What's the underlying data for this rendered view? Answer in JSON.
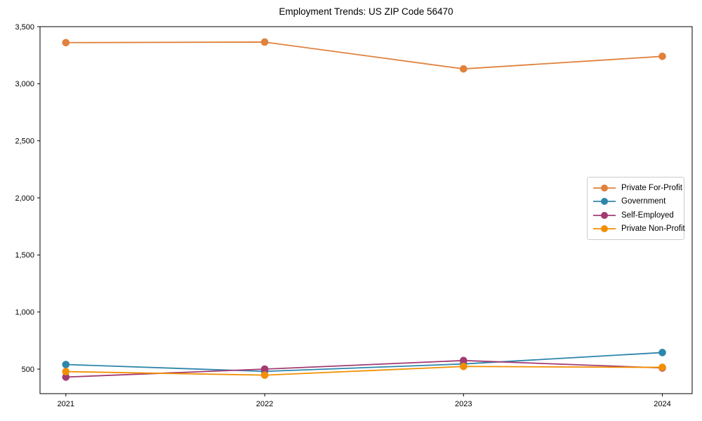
{
  "page": {
    "background": "#ffffff",
    "text_color": "#000000"
  },
  "chart_data": {
    "type": "line",
    "title": "Employment Trends: US ZIP Code 56470",
    "xlabel": "",
    "ylabel": "",
    "x": [
      2021,
      2022,
      2023,
      2024
    ],
    "x_tick_labels": [
      "2021",
      "2022",
      "2023",
      "2024"
    ],
    "y_ticks": [
      500,
      1000,
      1500,
      2000,
      2500,
      3000,
      3500
    ],
    "y_tick_labels": [
      "500",
      "1,000",
      "1,500",
      "2,000",
      "2,500",
      "3,000",
      "3,500"
    ],
    "xlim": [
      2020.87,
      2024.15
    ],
    "ylim": [
      285,
      3500
    ],
    "grid": false,
    "marker": "circle",
    "axis_color": "#000000",
    "legend_position": "center-right",
    "series": [
      {
        "name": "Private For-Profit",
        "color": "#E0813D",
        "values": [
          3360,
          3365,
          3130,
          3240
        ]
      },
      {
        "name": "Government",
        "color": "#2E86AB",
        "values": [
          540,
          480,
          545,
          645
        ]
      },
      {
        "name": "Self-Employed",
        "color": "#A23B72",
        "values": [
          430,
          500,
          575,
          510
        ]
      },
      {
        "name": "Private Non-Profit",
        "color": "#F18F01",
        "values": [
          478,
          447,
          523,
          515
        ]
      }
    ]
  }
}
